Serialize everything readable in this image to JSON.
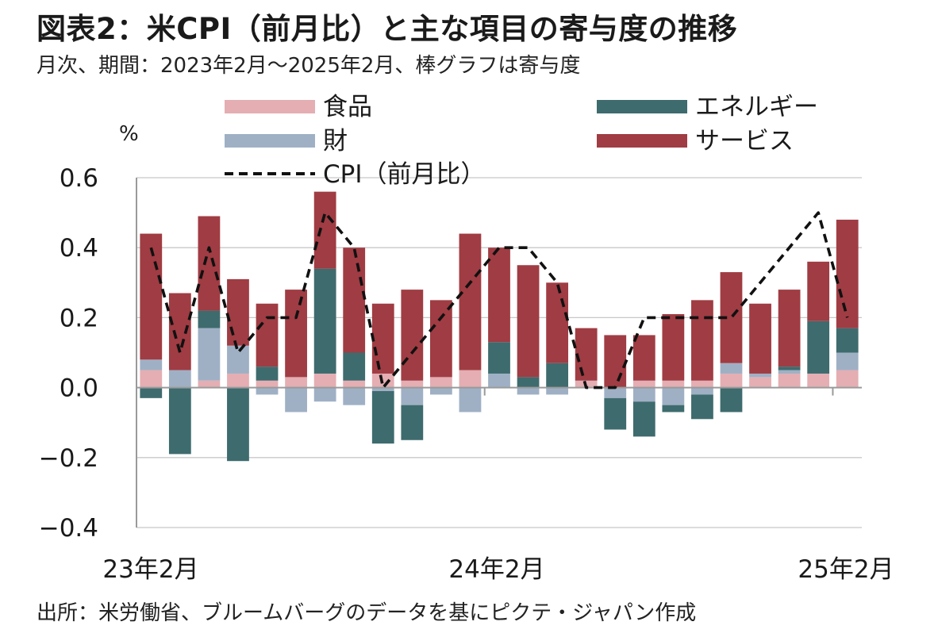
{
  "title": "図表2：米CPI（前月比）と主な項目の寄与度の推移",
  "subtitle": "月次、期間：2023年2月～2025年2月、棒グラフは寄与度",
  "source": "出所：米労働省、ブルームバーグのデータを基にピクテ・ジャパン作成",
  "chart_data": {
    "type": "bar",
    "stacked": true,
    "ylabel": "%",
    "ylim": [
      -0.4,
      0.6
    ],
    "yticks": [
      "0.6",
      "0.4",
      "0.2",
      "0.0",
      "−0.2",
      "−0.4"
    ],
    "ytick_values": [
      0.6,
      0.4,
      0.2,
      0.0,
      -0.2,
      -0.4
    ],
    "grid": true,
    "legend_position": "top",
    "x_tick_labels": [
      {
        "label": "23年2月",
        "index": 0
      },
      {
        "label": "24年2月",
        "index": 12
      },
      {
        "label": "25年2月",
        "index": 24
      }
    ],
    "categories": [
      "2023-02",
      "2023-03",
      "2023-04",
      "2023-05",
      "2023-06",
      "2023-07",
      "2023-08",
      "2023-09",
      "2023-10",
      "2023-11",
      "2023-12",
      "2024-01",
      "2024-02",
      "2024-03",
      "2024-04",
      "2024-05",
      "2024-06",
      "2024-07",
      "2024-08",
      "2024-09",
      "2024-10",
      "2024-11",
      "2024-12",
      "2025-01",
      "2025-02"
    ],
    "series": [
      {
        "name": "食品",
        "color": "#e4aeb3",
        "values": [
          0.05,
          0.0,
          0.02,
          0.04,
          0.02,
          0.03,
          0.04,
          0.02,
          0.04,
          0.02,
          0.03,
          0.05,
          0.0,
          0.0,
          0.0,
          0.02,
          0.0,
          0.02,
          0.02,
          0.02,
          0.04,
          0.03,
          0.04,
          0.04,
          0.05
        ]
      },
      {
        "name": "財",
        "color": "#9fb0c5",
        "values": [
          0.03,
          0.05,
          0.15,
          0.08,
          -0.02,
          -0.07,
          -0.04,
          -0.05,
          -0.01,
          -0.05,
          -0.02,
          -0.07,
          0.04,
          -0.02,
          -0.02,
          0.0,
          -0.03,
          -0.04,
          -0.05,
          -0.02,
          0.03,
          0.01,
          0.01,
          0.0,
          0.05
        ]
      },
      {
        "name": "エネルギー",
        "color": "#3e6b6e",
        "values": [
          -0.03,
          -0.19,
          0.05,
          -0.21,
          0.04,
          0.0,
          0.3,
          0.08,
          -0.15,
          -0.1,
          0.0,
          0.0,
          0.09,
          0.03,
          0.07,
          0.0,
          -0.09,
          -0.1,
          -0.02,
          -0.07,
          -0.07,
          0.0,
          0.01,
          0.15,
          0.07
        ]
      },
      {
        "name": "サービス",
        "color": "#a03c43",
        "values": [
          0.36,
          0.22,
          0.27,
          0.19,
          0.18,
          0.25,
          0.22,
          0.3,
          0.2,
          0.26,
          0.22,
          0.39,
          0.27,
          0.32,
          0.23,
          0.15,
          0.15,
          0.13,
          0.19,
          0.23,
          0.26,
          0.2,
          0.22,
          0.17,
          0.31
        ]
      },
      {
        "name": "CPI（前月比）",
        "type": "line",
        "color": "#111111",
        "values": [
          0.4,
          0.1,
          0.4,
          0.1,
          0.2,
          0.2,
          0.5,
          0.4,
          0.0,
          0.1,
          0.2,
          0.3,
          0.4,
          0.4,
          0.3,
          0.0,
          0.0,
          0.2,
          0.2,
          0.2,
          0.2,
          0.3,
          0.4,
          0.5,
          0.2
        ]
      }
    ]
  }
}
